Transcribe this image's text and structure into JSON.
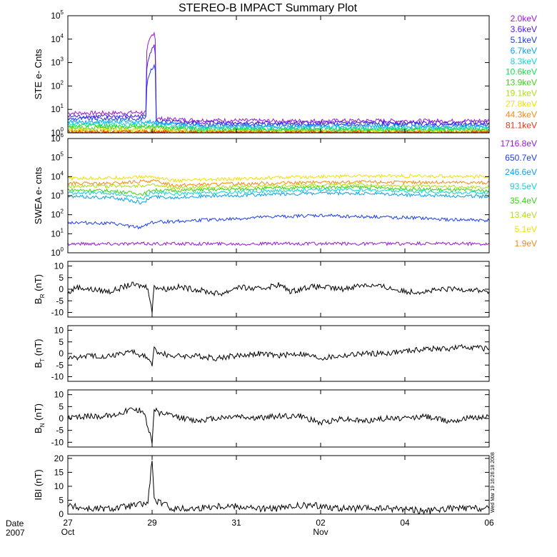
{
  "title": "STEREO-B IMPACT Summary Plot",
  "timestamp": "Wed Mar 19 16:26:18 2008",
  "xaxis": {
    "date_label": "Date",
    "year_label": "2007",
    "ticks": [
      {
        "day": 0,
        "label": "27",
        "month": "Oct"
      },
      {
        "day": 2,
        "label": "29",
        "month": ""
      },
      {
        "day": 4,
        "label": "31",
        "month": ""
      },
      {
        "day": 6,
        "label": "02",
        "month": "Nov"
      },
      {
        "day": 8,
        "label": "04",
        "month": ""
      },
      {
        "day": 10,
        "label": "06",
        "month": ""
      }
    ],
    "range_days": [
      0,
      10
    ]
  },
  "colors": {
    "bg": "#ffffff",
    "fg": "#000000",
    "c_2keV": "#9a19d6",
    "c_3.6keV": "#4b1ce0",
    "c_5.1keV": "#1b3cf5",
    "c_6.7keV": "#0aa0f0",
    "c_8.3keV": "#12d4d4",
    "c_10.6keV": "#12e052",
    "c_13.9keV": "#3ad416",
    "c_19.1keV": "#b0e012",
    "c_27.8keV": "#f0e000",
    "c_44.3keV": "#f58a10",
    "c_81.1keV": "#e63510"
  },
  "chart_data": [
    {
      "type": "line",
      "name": "ste",
      "ylabel": "STE e- Cnts",
      "yscale": "log",
      "ylim": [
        1,
        100000
      ],
      "ytick_exponents": [
        0,
        1,
        2,
        3,
        4,
        5
      ],
      "legend": [
        "2.0keV",
        "3.6keV",
        "5.1keV",
        "6.7keV",
        "8.3keV",
        "10.6keV",
        "13.9keV",
        "19.1keV",
        "27.8keV",
        "44.3keV",
        "81.1keV"
      ],
      "legend_colors": [
        "#9a19d6",
        "#4b1ce0",
        "#1b3cf5",
        "#0aa0f0",
        "#12d4d4",
        "#12e052",
        "#3ad416",
        "#b0e012",
        "#f0e000",
        "#f58a10",
        "#e63510"
      ],
      "series": [
        {
          "name": "2.0keV",
          "x": [
            0,
            1,
            1.85,
            2.05,
            2.1,
            3,
            5,
            7,
            9,
            10
          ],
          "y": [
            7,
            7,
            7.5,
            20000,
            4,
            3.5,
            3.2,
            3.3,
            3.2,
            3.3
          ]
        },
        {
          "name": "3.6keV",
          "x": [
            0,
            1,
            1.85,
            2.05,
            2.1,
            3,
            5,
            7,
            9,
            10
          ],
          "y": [
            5,
            5,
            5.2,
            5000,
            3,
            2.8,
            2.6,
            2.7,
            2.6,
            2.7
          ]
        },
        {
          "name": "5.1keV",
          "x": [
            0,
            1,
            1.85,
            2.05,
            2.1,
            3,
            5,
            7,
            9,
            10
          ],
          "y": [
            4,
            4,
            4.2,
            800,
            2.5,
            2.3,
            2.2,
            2.3,
            2.2,
            2.3
          ]
        },
        {
          "name": "6.7keV",
          "x": [
            0,
            1,
            2,
            3,
            5,
            7,
            10
          ],
          "y": [
            3,
            3,
            3,
            2,
            1.8,
            1.9,
            1.9
          ]
        },
        {
          "name": "8.3keV",
          "x": [
            0,
            1,
            2,
            3,
            5,
            7,
            10
          ],
          "y": [
            2.5,
            2.5,
            2.5,
            1.7,
            1.6,
            1.6,
            1.6
          ]
        },
        {
          "name": "10.6keV",
          "x": [
            0,
            1,
            2,
            3,
            5,
            7,
            10
          ],
          "y": [
            2,
            2,
            2,
            1.5,
            1.4,
            1.4,
            1.4
          ]
        },
        {
          "name": "13.9keV",
          "x": [
            0,
            1,
            2,
            3,
            5,
            7,
            10
          ],
          "y": [
            1.7,
            1.7,
            1.7,
            1.3,
            1.25,
            1.25,
            1.25
          ]
        },
        {
          "name": "19.1keV",
          "x": [
            0,
            1,
            2,
            3,
            5,
            7,
            10
          ],
          "y": [
            1.4,
            1.4,
            1.4,
            1.15,
            1.12,
            1.12,
            1.12
          ]
        },
        {
          "name": "27.8keV",
          "x": [
            0,
            1,
            2,
            3,
            5,
            7,
            10
          ],
          "y": [
            1.2,
            1.2,
            1.2,
            1.08,
            1.06,
            1.06,
            1.06
          ]
        },
        {
          "name": "44.3keV",
          "x": [
            0,
            1,
            2,
            3,
            5,
            7,
            10
          ],
          "y": [
            1.1,
            1.1,
            1.1,
            1.04,
            1.03,
            1.03,
            1.03
          ]
        },
        {
          "name": "81.1keV",
          "x": [
            0,
            1,
            2,
            3,
            5,
            7,
            10
          ],
          "y": [
            1.05,
            1.05,
            1.05,
            1.02,
            1.02,
            1.02,
            1.02
          ]
        }
      ]
    },
    {
      "type": "line",
      "name": "swea",
      "ylabel": "SWEA e- cnts",
      "yscale": "log",
      "ylim": [
        1,
        1000000
      ],
      "ytick_exponents": [
        0,
        1,
        2,
        3,
        4,
        5,
        6
      ],
      "legend": [
        "1716.8eV",
        "650.7eV",
        "246.6eV",
        "93.5eV",
        "35.4eV",
        "13.4eV",
        "5.1eV",
        "1.9eV"
      ],
      "legend_colors": [
        "#9a19d6",
        "#1b3cf5",
        "#0aa0f0",
        "#12d4d4",
        "#3ad416",
        "#b0e012",
        "#f0e000",
        "#f58a10"
      ],
      "series": [
        {
          "name": "1.9eV",
          "x": [
            0,
            1,
            2,
            2.5,
            3,
            4,
            5,
            6,
            7,
            8,
            9,
            10
          ],
          "y": [
            4500,
            4200,
            6000,
            3500,
            3800,
            4200,
            4500,
            5000,
            5200,
            5000,
            5000,
            4800
          ]
        },
        {
          "name": "5.1eV",
          "x": [
            0,
            1,
            2,
            2.5,
            3,
            4,
            5,
            6,
            7,
            8,
            9,
            10
          ],
          "y": [
            8000,
            8500,
            10000,
            6000,
            6500,
            7500,
            9000,
            10000,
            11000,
            10500,
            10500,
            10000
          ]
        },
        {
          "name": "13.4eV",
          "x": [
            0,
            1,
            2,
            2.5,
            3,
            4,
            5,
            6,
            7,
            8,
            9,
            10
          ],
          "y": [
            3000,
            3200,
            3500,
            2500,
            2700,
            3000,
            3300,
            3600,
            3800,
            3300,
            3000,
            2800
          ]
        },
        {
          "name": "35.4eV",
          "x": [
            0,
            1,
            1.8,
            2,
            2.5,
            3,
            4,
            5,
            6,
            7,
            8,
            9,
            10
          ],
          "y": [
            2000,
            1800,
            1200,
            2000,
            1800,
            2000,
            2200,
            2500,
            2800,
            2800,
            2300,
            2000,
            1800
          ]
        },
        {
          "name": "93.5eV",
          "x": [
            0,
            1,
            1.8,
            2,
            2.5,
            3,
            4,
            5,
            6,
            7,
            8,
            9,
            10
          ],
          "y": [
            1400,
            1300,
            700,
            1500,
            1200,
            1300,
            1500,
            1800,
            2000,
            2000,
            1700,
            1500,
            1400
          ]
        },
        {
          "name": "246.6eV",
          "x": [
            0,
            1,
            1.8,
            2,
            2.5,
            3,
            4,
            5,
            6,
            7,
            8,
            9,
            10
          ],
          "y": [
            900,
            800,
            400,
            900,
            800,
            900,
            1000,
            1200,
            1300,
            1300,
            1100,
            1000,
            900
          ]
        },
        {
          "name": "650.7eV",
          "x": [
            0,
            1,
            1.7,
            2,
            2.5,
            3,
            4,
            5,
            6,
            7,
            8,
            9,
            10
          ],
          "y": [
            40,
            35,
            20,
            40,
            45,
            50,
            60,
            80,
            90,
            80,
            70,
            55,
            50
          ]
        },
        {
          "name": "1716.8eV",
          "x": [
            0,
            5,
            10
          ],
          "y": [
            3,
            3,
            3
          ]
        }
      ]
    },
    {
      "type": "line",
      "name": "br",
      "ylabel": "B",
      "ylabel_sub": "R",
      "ylabel_unit": " (nT)",
      "ylim": [
        -12,
        12
      ],
      "yticks": [
        -10,
        -5,
        0,
        5,
        10
      ],
      "series": [
        {
          "name": "",
          "x": [
            0,
            0.2,
            0.5,
            1,
            1.5,
            1.9,
            2.0,
            2.05,
            2.1,
            2.3,
            2.6,
            3,
            3.3,
            3.6,
            3.8,
            4,
            4.5,
            5,
            5.3,
            5.7,
            6,
            6.5,
            7,
            7.5,
            8,
            8.5,
            9,
            9.5,
            10
          ],
          "y": [
            -2,
            1,
            0,
            -1,
            2,
            1,
            -10,
            2,
            1,
            0,
            1,
            0,
            -1,
            -2,
            -1,
            1,
            0,
            2,
            -1,
            1,
            1,
            0,
            2,
            1,
            -1,
            -1,
            0,
            0,
            -1
          ]
        }
      ]
    },
    {
      "type": "line",
      "name": "bt",
      "ylabel": "B",
      "ylabel_sub": "T",
      "ylabel_unit": " (nT)",
      "ylim": [
        -12,
        12
      ],
      "yticks": [
        -10,
        -5,
        0,
        5,
        10
      ],
      "series": [
        {
          "name": "",
          "x": [
            0,
            0.5,
            1,
            1.5,
            1.9,
            2.0,
            2.05,
            2.2,
            2.5,
            3,
            3.5,
            4,
            4.5,
            5,
            5.5,
            6,
            6.5,
            7,
            7.5,
            8,
            8.5,
            9,
            9.5,
            10
          ],
          "y": [
            -2,
            -1,
            -1,
            1,
            -2,
            -5,
            2,
            0,
            -1,
            -1,
            -2,
            -1,
            0,
            -1,
            0,
            -2,
            -1,
            0,
            0,
            1,
            2,
            2,
            3,
            2
          ]
        }
      ]
    },
    {
      "type": "line",
      "name": "bn",
      "ylabel": "B",
      "ylabel_sub": "N",
      "ylabel_unit": " (nT)",
      "ylim": [
        -12,
        12
      ],
      "yticks": [
        -10,
        -5,
        0,
        5,
        10
      ],
      "series": [
        {
          "name": "",
          "x": [
            0,
            0.5,
            1,
            1.5,
            1.8,
            2.0,
            2.05,
            2.2,
            2.5,
            3,
            3.5,
            4,
            4.5,
            5,
            5.5,
            6,
            6.5,
            7,
            7.5,
            8,
            8.5,
            9,
            9.5,
            10
          ],
          "y": [
            0,
            1,
            1,
            4,
            3,
            -10,
            4,
            2,
            1,
            -1,
            0,
            1,
            0,
            1,
            1,
            -2,
            0,
            -1,
            0,
            0,
            1,
            -1,
            0,
            1
          ]
        }
      ]
    },
    {
      "type": "line",
      "name": "bmag",
      "ylabel": "IBI (nT)",
      "ylim": [
        0,
        21
      ],
      "yticks": [
        0,
        5,
        10,
        15,
        20
      ],
      "series": [
        {
          "name": "",
          "x": [
            0,
            0.5,
            1,
            1.5,
            1.9,
            2.0,
            2.05,
            2.2,
            2.5,
            3,
            3.5,
            4,
            4.5,
            5,
            5.5,
            6,
            6.5,
            7,
            7.5,
            8,
            8.5,
            9,
            9.5,
            10
          ],
          "y": [
            3,
            2,
            2,
            3,
            4,
            20,
            5,
            4,
            2,
            2,
            3,
            3,
            2,
            2,
            3,
            3,
            2,
            2,
            2,
            2,
            1,
            2,
            2,
            2
          ]
        }
      ]
    }
  ]
}
